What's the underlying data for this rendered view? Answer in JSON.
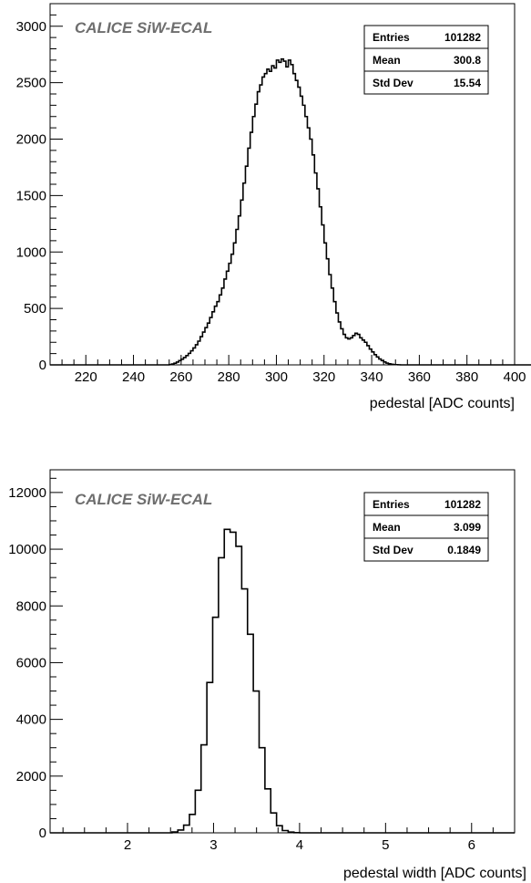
{
  "chart_data": [
    {
      "type": "histogram",
      "label": "CALICE SiW-ECAL",
      "xlabel": "pedestal [ADC counts]",
      "ylabel": "",
      "xlim": [
        205,
        400
      ],
      "ylim": [
        0,
        3200
      ],
      "xticks": [
        "220",
        "240",
        "260",
        "280",
        "300",
        "320",
        "340",
        "360",
        "380",
        "400"
      ],
      "yticks": [
        "0",
        "500",
        "1000",
        "1500",
        "2000",
        "2500",
        "3000"
      ],
      "stats": [
        {
          "name": "Entries",
          "value": "101282"
        },
        {
          "name": "Mean",
          "value": "300.8"
        },
        {
          "name": "Std Dev",
          "value": "15.54"
        }
      ],
      "bins": {
        "start": 205,
        "width": 1,
        "counts": [
          0,
          0,
          0,
          0,
          0,
          0,
          0,
          0,
          0,
          0,
          0,
          0,
          0,
          0,
          0,
          0,
          0,
          0,
          0,
          0,
          0,
          0,
          0,
          0,
          0,
          0,
          0,
          0,
          0,
          0,
          0,
          0,
          0,
          0,
          0,
          0,
          0,
          0,
          0,
          0,
          0,
          0,
          0,
          0,
          0,
          0,
          0,
          0,
          0,
          0,
          3,
          8,
          15,
          25,
          38,
          50,
          65,
          82,
          102,
          125,
          150,
          178,
          210,
          250,
          290,
          330,
          370,
          420,
          470,
          520,
          560,
          620,
          680,
          760,
          830,
          900,
          980,
          1080,
          1200,
          1320,
          1460,
          1610,
          1760,
          1920,
          2060,
          2200,
          2310,
          2420,
          2480,
          2550,
          2580,
          2620,
          2600,
          2650,
          2630,
          2700,
          2680,
          2710,
          2690,
          2640,
          2700,
          2660,
          2580,
          2520,
          2460,
          2380,
          2300,
          2200,
          2100,
          2000,
          1860,
          1700,
          1560,
          1400,
          1240,
          1080,
          940,
          800,
          680,
          560,
          460,
          380,
          320,
          270,
          240,
          230,
          240,
          260,
          280,
          270,
          240,
          220,
          200,
          170,
          140,
          115,
          90,
          70,
          52,
          38,
          26,
          16,
          10,
          6,
          3,
          2,
          1,
          0,
          0,
          0,
          0,
          0,
          0,
          0,
          0,
          0,
          0,
          0,
          0,
          0,
          0,
          0,
          0,
          0,
          0,
          0,
          0,
          0,
          0,
          0,
          0,
          0,
          0,
          0,
          0,
          0,
          0,
          0,
          0,
          0,
          0,
          0,
          0,
          0,
          0,
          0,
          0,
          0,
          0,
          0,
          0,
          0,
          0,
          0,
          0,
          0,
          0,
          0,
          0,
          0,
          0,
          0,
          0,
          0,
          0,
          0,
          0,
          0,
          0,
          0,
          0,
          0,
          0,
          0,
          0,
          0,
          0,
          0,
          0,
          0,
          0
        ]
      }
    },
    {
      "type": "histogram",
      "label": "CALICE SiW-ECAL",
      "xlabel": "pedestal width [ADC counts]",
      "ylabel": "",
      "xlim": [
        1.1,
        6.5
      ],
      "ylim": [
        0,
        12800
      ],
      "xticks": [
        "2",
        "3",
        "4",
        "5",
        "6"
      ],
      "yticks": [
        "0",
        "2000",
        "4000",
        "6000",
        "8000",
        "10000",
        "12000"
      ],
      "stats": [
        {
          "name": "Entries",
          "value": "101282"
        },
        {
          "name": "Mean",
          "value": "3.099"
        },
        {
          "name": "Std Dev",
          "value": "0.1849"
        }
      ],
      "bins": {
        "start": 1.1,
        "width": 0.0675,
        "counts": [
          0,
          0,
          0,
          0,
          0,
          0,
          0,
          0,
          0,
          0,
          0,
          0,
          0,
          0,
          0,
          0,
          0,
          0,
          0,
          0,
          0,
          30,
          100,
          270,
          650,
          1500,
          3100,
          5300,
          7600,
          9700,
          10700,
          10600,
          10100,
          8600,
          7000,
          5000,
          3000,
          1550,
          700,
          250,
          80,
          25,
          5,
          0,
          0,
          0,
          0,
          0,
          0,
          0,
          0,
          0,
          0,
          0,
          0,
          0,
          0,
          0,
          0,
          0,
          0,
          0,
          0,
          0,
          0,
          0,
          0,
          0,
          0,
          0,
          0,
          0,
          0,
          0,
          0,
          0,
          0,
          0,
          0,
          0
        ]
      }
    }
  ]
}
